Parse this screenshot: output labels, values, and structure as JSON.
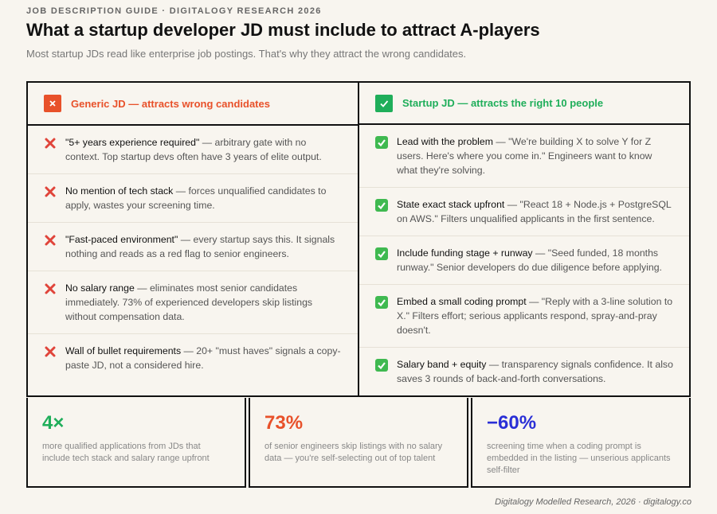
{
  "header": {
    "eyebrow": "JOB DESCRIPTION GUIDE · DIGITALOGY RESEARCH 2026",
    "title": "What a startup developer JD must include to attract A-players",
    "subtitle": "Most startup JDs read like enterprise job postings. That's why they attract the wrong candidates."
  },
  "columns": [
    {
      "title": "Generic JD — attracts wrong candidates",
      "items": [
        {
          "lead": "\"5+ years experience required\"",
          "text": " — arbitrary gate with no context. Top startup devs often have 3 years of elite output."
        },
        {
          "lead": "No mention of tech stack",
          "text": " — forces unqualified candidates to apply, wastes your screening time."
        },
        {
          "lead": "\"Fast-paced environment\"",
          "text": " — every startup says this. It signals nothing and reads as a red flag to senior engineers."
        },
        {
          "lead": "No salary range",
          "text": " — eliminates most senior candidates immediately. 73% of experienced developers skip listings without compensation data."
        },
        {
          "lead": "Wall of bullet requirements",
          "text": " — 20+ \"must haves\" signals a copy-paste JD, not a considered hire."
        }
      ]
    },
    {
      "title": "Startup JD — attracts the right 10 people",
      "items": [
        {
          "lead": "Lead with the problem",
          "text": " — \"We're building X to solve Y for Z users. Here's where you come in.\" Engineers want to know what they're solving."
        },
        {
          "lead": "State exact stack upfront",
          "text": " — \"React 18 + Node.js + PostgreSQL on AWS.\" Filters unqualified applicants in the first sentence."
        },
        {
          "lead": "Include funding stage + runway",
          "text": " — \"Seed funded, 18 months runway.\" Senior developers do due diligence before applying."
        },
        {
          "lead": "Embed a small coding prompt",
          "text": " — \"Reply with a 3-line solution to X.\" Filters effort; serious applicants respond, spray-and-pray doesn't."
        },
        {
          "lead": "Salary band + equity",
          "text": " — transparency signals confidence. It also saves 3 rounds of back-and-forth conversations."
        }
      ]
    }
  ],
  "stats": [
    {
      "value": "4×",
      "text": "more qualified applications from JDs that include tech stack and salary range upfront"
    },
    {
      "value": "73%",
      "text": "of senior engineers skip listings with no salary data — you're self-selecting out of top talent"
    },
    {
      "value": "−60%",
      "text": "screening time when a coding prompt is embedded in the listing — unserious applicants self-filter"
    }
  ],
  "footer": "Digitalogy Modelled Research, 2026 · digitalogy.co"
}
